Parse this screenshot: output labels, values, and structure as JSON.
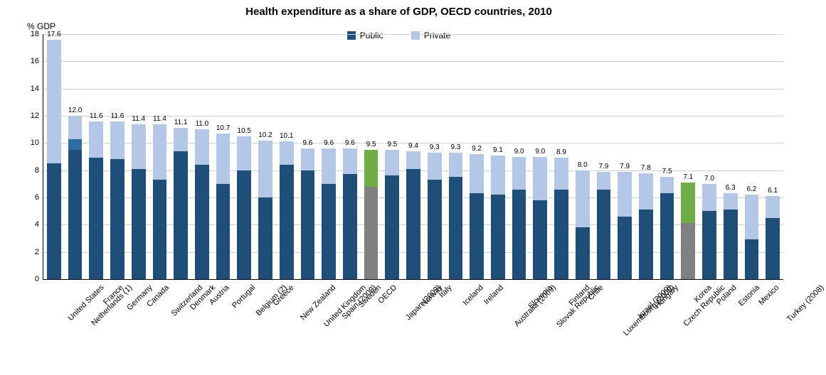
{
  "chart": {
    "type": "stacked-bar",
    "title": "Health expenditure as a share of GDP, OECD countries, 2010",
    "y_axis_label": "% GDP",
    "title_fontsize": 15,
    "label_fontsize": 12,
    "tick_fontsize": 11,
    "value_fontsize": 10,
    "ylim": [
      0,
      18
    ],
    "ytick_step": 2,
    "background_color": "#ffffff",
    "grid_color": "#d0d0d0",
    "bar_width_ratio": 0.66,
    "xlabel_rotation": -45,
    "colors": {
      "public": "#1f4e79",
      "private": "#b4c7e7",
      "special_public": "#808080",
      "special_private": "#70ad47"
    },
    "legend": [
      {
        "label": "Public",
        "color": "#1f4e79"
      },
      {
        "label": "Private",
        "color": "#b4c7e7"
      }
    ],
    "series_order": [
      "public",
      "private"
    ],
    "data": [
      {
        "label": "United States",
        "total": 17.6,
        "public": 8.5,
        "private": 9.1
      },
      {
        "label": "Netherlands (1)",
        "total": 12.0,
        "public": 10.3,
        "private": 1.7,
        "extra_public": 9.5
      },
      {
        "label": "France",
        "total": 11.6,
        "public": 8.9,
        "private": 2.7
      },
      {
        "label": "Germany",
        "total": 11.6,
        "public": 8.8,
        "private": 2.8
      },
      {
        "label": "Canada",
        "total": 11.4,
        "public": 8.1,
        "private": 3.3
      },
      {
        "label": "Switzerland",
        "total": 11.4,
        "public": 7.3,
        "private": 4.1
      },
      {
        "label": "Denmark",
        "total": 11.1,
        "public": 9.4,
        "private": 1.7
      },
      {
        "label": "Austria",
        "total": 11.0,
        "public": 8.4,
        "private": 2.6
      },
      {
        "label": "Portugal",
        "total": 10.7,
        "public": 7.0,
        "private": 3.7
      },
      {
        "label": "Belgium (2)",
        "total": 10.5,
        "public": 8.0,
        "private": 2.5
      },
      {
        "label": "Greece",
        "total": 10.2,
        "public": 6.0,
        "private": 4.2
      },
      {
        "label": "New Zealand",
        "total": 10.1,
        "public": 8.4,
        "private": 1.7
      },
      {
        "label": "United Kingdom",
        "total": 9.6,
        "public": 8.0,
        "private": 1.6
      },
      {
        "label": "Spain (2009)",
        "total": 9.6,
        "public": 7.0,
        "private": 2.6
      },
      {
        "label": "Sweden",
        "total": 9.6,
        "public": 7.7,
        "private": 1.9
      },
      {
        "label": "OECD",
        "total": 9.5,
        "public": 6.8,
        "private": 2.7,
        "special": true
      },
      {
        "label": "Japan (2009)",
        "total": 9.5,
        "public": 7.6,
        "private": 1.9
      },
      {
        "label": "Norway",
        "total": 9.4,
        "public": 8.1,
        "private": 1.3
      },
      {
        "label": "Italy",
        "total": 9.3,
        "public": 7.3,
        "private": 2.0
      },
      {
        "label": "Iceland",
        "total": 9.3,
        "public": 7.5,
        "private": 1.8
      },
      {
        "label": "Ireland",
        "total": 9.2,
        "public": 6.3,
        "private": 2.9
      },
      {
        "label": "Australia (2009)",
        "total": 9.1,
        "public": 6.2,
        "private": 2.9
      },
      {
        "label": "Slovenia",
        "total": 9.0,
        "public": 6.6,
        "private": 2.4
      },
      {
        "label": "Slovak Republic",
        "total": 9.0,
        "public": 5.8,
        "private": 3.2
      },
      {
        "label": "Finland",
        "total": 8.9,
        "public": 6.6,
        "private": 2.3
      },
      {
        "label": "Chile",
        "total": 8.0,
        "public": 3.8,
        "private": 4.2
      },
      {
        "label": "Luxembourg (2009)",
        "total": 7.9,
        "public": 6.6,
        "private": 1.3
      },
      {
        "label": "Israel (2009)",
        "total": 7.9,
        "public": 4.6,
        "private": 3.3
      },
      {
        "label": "Hungary",
        "total": 7.8,
        "public": 5.1,
        "private": 2.7
      },
      {
        "label": "Czech Republic",
        "total": 7.5,
        "public": 6.3,
        "private": 1.2
      },
      {
        "label": "Korea",
        "total": 7.1,
        "public": 4.1,
        "private": 3.0,
        "special": true
      },
      {
        "label": "Poland",
        "total": 7.0,
        "public": 5.0,
        "private": 2.0
      },
      {
        "label": "Estonia",
        "total": 6.3,
        "public": 5.1,
        "private": 1.2
      },
      {
        "label": "Mexico",
        "total": 6.2,
        "public": 2.9,
        "private": 3.3
      },
      {
        "label": "Turkey (2008)",
        "total": 6.1,
        "public": 4.5,
        "private": 1.6
      }
    ]
  }
}
